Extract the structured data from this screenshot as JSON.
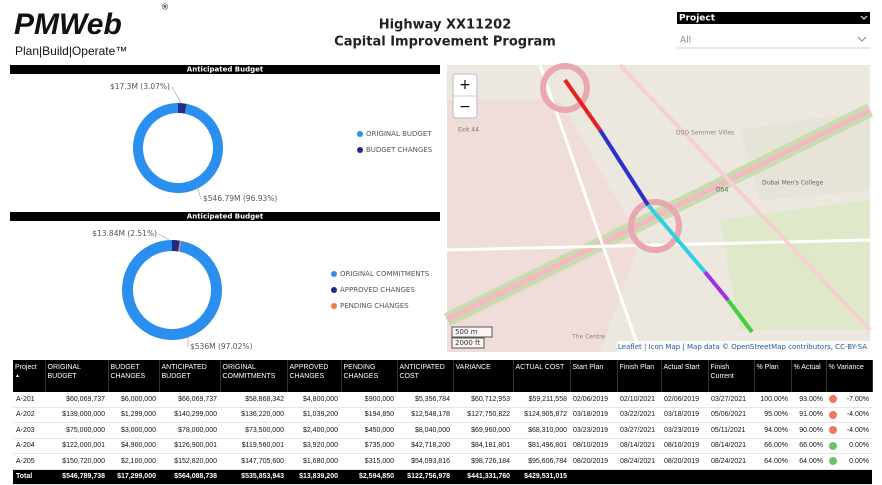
{
  "header": {
    "logo": "PMWeb",
    "logo_mark": "®",
    "tagline": "Plan|Build|Operate™",
    "title": "Highway XX11202",
    "subtitle": "Capital Improvement Program"
  },
  "slicer": {
    "label": "Project",
    "value": "All"
  },
  "chart_data": [
    {
      "type": "pie",
      "donut": true,
      "title": "Anticipated Budget",
      "categories": [
        "ORIGINAL BUDGET",
        "BUDGET CHANGES"
      ],
      "values": [
        546.79,
        17.3
      ],
      "value_labels": [
        "$546.79M (96.93%)",
        "$17.3M (3.07%)"
      ],
      "colors": [
        "#2b8ff0",
        "#1f2a8a"
      ],
      "legend": "right"
    },
    {
      "type": "pie",
      "donut": true,
      "title": "Anticipated Budget",
      "categories": [
        "ORIGINAL COMMITMENTS",
        "APPROVED CHANGES",
        "PENDING CHANGES"
      ],
      "values": [
        536,
        13.84,
        2.59
      ],
      "value_labels": [
        "$536M (97.02%)",
        "$13.84M (2.51%)",
        null
      ],
      "colors": [
        "#2b8ff0",
        "#1f2a8a",
        "#ef7a4c"
      ],
      "legend": "right"
    }
  ],
  "map": {
    "zoom_in": "+",
    "zoom_out": "−",
    "scale": [
      "500 m",
      "2000 ft"
    ],
    "attribution": "Leaflet | Icon Map | Map data © OpenStreetMap contributors, CC-BY-SA",
    "labels": [
      "Exit 44",
      "DSO Semmer Villas",
      "Dubai Men's College",
      "D54",
      "The Centre"
    ]
  },
  "table": {
    "columns": [
      "Project",
      "ORIGINAL BUDGET",
      "BUDGET CHANGES",
      "ANTICIPATED BUDGET",
      "ORIGINAL COMMITMENTS",
      "APPROVED CHANGES",
      "PENDING CHANGES",
      "ANTICIPATED COST",
      "VARIANCE",
      "ACTUAL COST",
      "Start Plan",
      "Finish Plan",
      "Actual Start",
      "Finish Current",
      "% Plan",
      "% Actual",
      "% Variance"
    ],
    "rows": [
      [
        "A-201",
        "$60,069,737",
        "$6,000,000",
        "$66,069,737",
        "$58,868,342",
        "$4,800,000",
        "$900,000",
        "$5,356,784",
        "$60,712,953",
        "$59,211,558",
        "02/06/2019",
        "02/10/2021",
        "02/06/2019",
        "03/27/2021",
        "100.00%",
        "93.00%",
        "-7.00%"
      ],
      [
        "A-202",
        "$139,000,000",
        "$1,299,000",
        "$140,299,000",
        "$136,220,000",
        "$1,039,200",
        "$194,850",
        "$12,548,178",
        "$127,750,822",
        "$124,905,872",
        "03/18/2019",
        "03/22/2021",
        "03/18/2019",
        "05/06/2021",
        "95.00%",
        "91.00%",
        "-4.00%"
      ],
      [
        "A-203",
        "$75,000,000",
        "$3,000,000",
        "$78,000,000",
        "$73,500,000",
        "$2,400,000",
        "$450,000",
        "$8,040,000",
        "$69,960,000",
        "$68,310,000",
        "03/23/2019",
        "03/27/2021",
        "03/23/2019",
        "05/11/2021",
        "94.00%",
        "90.00%",
        "-4.00%"
      ],
      [
        "A-204",
        "$122,000,001",
        "$4,900,000",
        "$126,900,001",
        "$119,560,001",
        "$3,920,000",
        "$735,000",
        "$42,718,200",
        "$84,181,801",
        "$81,496,801",
        "08/10/2019",
        "08/14/2021",
        "08/10/2019",
        "08/14/2021",
        "66.00%",
        "66.00%",
        "0.00%"
      ],
      [
        "A-205",
        "$150,720,000",
        "$2,100,000",
        "$152,820,000",
        "$147,705,600",
        "$1,680,000",
        "$315,000",
        "$54,093,816",
        "$98,726,184",
        "$95,606,784",
        "08/20/2019",
        "08/24/2021",
        "08/20/2019",
        "08/24/2021",
        "64.00%",
        "64.00%",
        "0.00%"
      ]
    ],
    "status_colors": [
      "#f07860",
      "#f07860",
      "#f07860",
      "#6cc070",
      "#6cc070"
    ],
    "total": [
      "Total",
      "$546,789,738",
      "$17,299,000",
      "$564,088,738",
      "$535,853,943",
      "$13,839,200",
      "$2,594,850",
      "$122,756,978",
      "$441,331,760",
      "$429,531,015"
    ]
  }
}
